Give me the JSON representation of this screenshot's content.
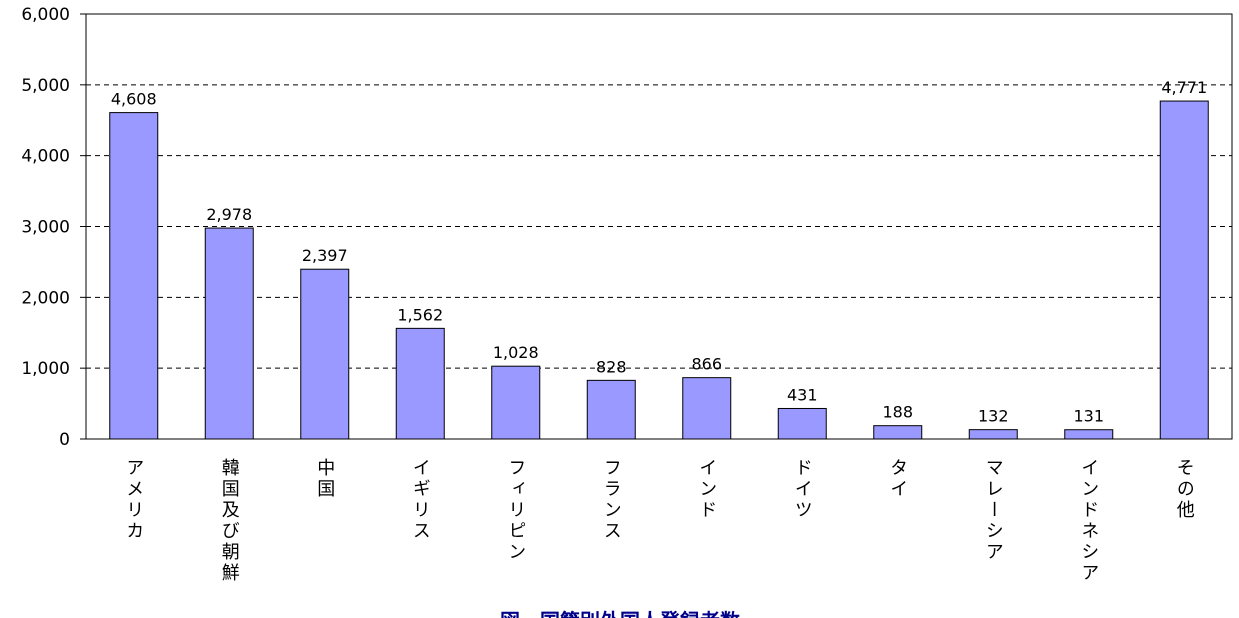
{
  "chart_data": {
    "type": "bar",
    "title": "図　国籍別外国人登録者数",
    "categories": [
      "アメリカ",
      "韓国及び朝鮮",
      "中国",
      "イギリス",
      "フィリピン",
      "フランス",
      "インド",
      "ドイツ",
      "タイ",
      "マレーシア",
      "インドネシア",
      "その他"
    ],
    "values": [
      4608,
      2978,
      2397,
      1562,
      1028,
      828,
      866,
      431,
      188,
      132,
      131,
      4771
    ],
    "value_labels": [
      "4,608",
      "2,978",
      "2,397",
      "1,562",
      "1,028",
      "828",
      "866",
      "431",
      "188",
      "132",
      "131",
      "4,771"
    ],
    "color": "#9999ff",
    "ylim": [
      0,
      6000
    ],
    "yticks": [
      0,
      {
        "value": 1000,
        "label": "1,000"
      },
      {
        "value": 2000,
        "label": "2,000"
      },
      {
        "value": 3000,
        "label": "3,000"
      },
      {
        "value": 4000,
        "label": "4,000"
      },
      {
        "value": 5000,
        "label": "5,000"
      },
      {
        "value": 6000,
        "label": "6,000"
      }
    ],
    "grid": true
  }
}
